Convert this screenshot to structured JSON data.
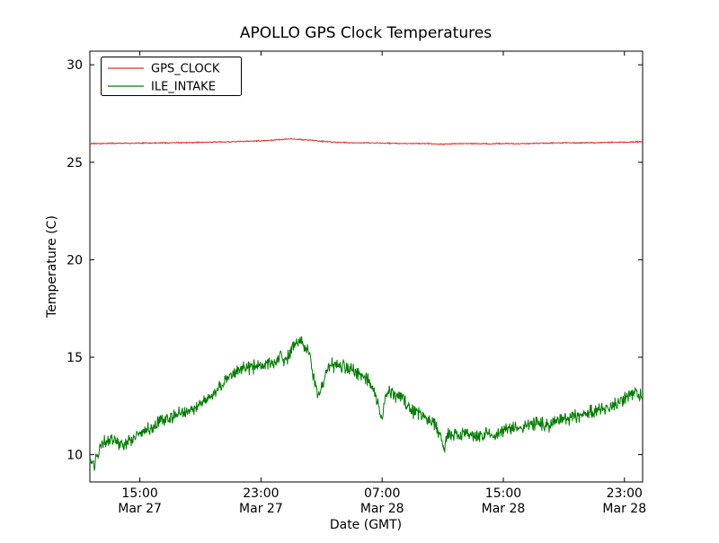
{
  "chart_data": {
    "type": "line",
    "title": "APOLLO GPS Clock Temperatures",
    "xlabel": "Date (GMT)",
    "ylabel": "Temperature (C)",
    "x_unit": "hours since Mar 27 00:00 GMT",
    "xlim": [
      11.7,
      48.2
    ],
    "ylim": [
      8.6,
      30.7
    ],
    "grid": false,
    "yticks": [
      10,
      15,
      20,
      25,
      30
    ],
    "xticks": [
      {
        "value": 15,
        "time": "15:00",
        "date": "Mar 27"
      },
      {
        "value": 23,
        "time": "23:00",
        "date": "Mar 27"
      },
      {
        "value": 31,
        "time": "07:00",
        "date": "Mar 28"
      },
      {
        "value": 39,
        "time": "15:00",
        "date": "Mar 28"
      },
      {
        "value": 47,
        "time": "23:00",
        "date": "Mar 28"
      }
    ],
    "legend": {
      "position": "upper-left"
    },
    "series": [
      {
        "name": "GPS_CLOCK",
        "color": "#e53228",
        "noise": 0.02,
        "points": [
          [
            11.7,
            25.95
          ],
          [
            13,
            25.97
          ],
          [
            15,
            25.98
          ],
          [
            17,
            26.0
          ],
          [
            19,
            26.02
          ],
          [
            21,
            26.05
          ],
          [
            23,
            26.1
          ],
          [
            24,
            26.15
          ],
          [
            25,
            26.2
          ],
          [
            26,
            26.15
          ],
          [
            27,
            26.08
          ],
          [
            28,
            26.02
          ],
          [
            29,
            26.0
          ],
          [
            30,
            26.0
          ],
          [
            31,
            25.98
          ],
          [
            32,
            25.97
          ],
          [
            33,
            25.96
          ],
          [
            34,
            25.96
          ],
          [
            35,
            25.93
          ],
          [
            36,
            25.95
          ],
          [
            37,
            25.96
          ],
          [
            38,
            25.95
          ],
          [
            39,
            25.96
          ],
          [
            40,
            25.95
          ],
          [
            41,
            25.97
          ],
          [
            42,
            25.98
          ],
          [
            43,
            26.0
          ],
          [
            44,
            26.0
          ],
          [
            45,
            26.0
          ],
          [
            46,
            26.02
          ],
          [
            47,
            26.03
          ],
          [
            48.2,
            26.05
          ]
        ]
      },
      {
        "name": "ILE_INTAKE",
        "color": "#007d00",
        "noise": 0.24,
        "points": [
          [
            11.7,
            9.8
          ],
          [
            11.9,
            9.4
          ],
          [
            12.1,
            9.7
          ],
          [
            12.4,
            10.5
          ],
          [
            12.7,
            10.7
          ],
          [
            13.2,
            10.7
          ],
          [
            13.6,
            10.6
          ],
          [
            14.0,
            10.6
          ],
          [
            14.4,
            10.8
          ],
          [
            14.8,
            11.0
          ],
          [
            15.3,
            11.2
          ],
          [
            15.8,
            11.4
          ],
          [
            16.3,
            11.7
          ],
          [
            16.8,
            11.9
          ],
          [
            17.3,
            12.0
          ],
          [
            17.8,
            12.2
          ],
          [
            18.3,
            12.3
          ],
          [
            18.8,
            12.5
          ],
          [
            19.3,
            12.8
          ],
          [
            19.8,
            13.1
          ],
          [
            20.3,
            13.5
          ],
          [
            20.8,
            14.0
          ],
          [
            21.3,
            14.3
          ],
          [
            21.8,
            14.4
          ],
          [
            22.3,
            14.5
          ],
          [
            22.8,
            14.5
          ],
          [
            23.3,
            14.6
          ],
          [
            23.7,
            14.8
          ],
          [
            24.0,
            14.6
          ],
          [
            24.3,
            15.1
          ],
          [
            24.6,
            14.7
          ],
          [
            25.0,
            15.4
          ],
          [
            25.3,
            15.7
          ],
          [
            25.6,
            15.8
          ],
          [
            25.9,
            15.5
          ],
          [
            26.2,
            15.2
          ],
          [
            26.5,
            13.9
          ],
          [
            26.8,
            13.0
          ],
          [
            27.1,
            13.6
          ],
          [
            27.4,
            14.4
          ],
          [
            27.7,
            14.6
          ],
          [
            28.1,
            14.5
          ],
          [
            28.5,
            14.5
          ],
          [
            29.0,
            14.4
          ],
          [
            29.5,
            14.1
          ],
          [
            30.0,
            13.9
          ],
          [
            30.4,
            13.3
          ],
          [
            30.7,
            12.7
          ],
          [
            30.95,
            11.9
          ],
          [
            31.2,
            13.0
          ],
          [
            31.5,
            13.3
          ],
          [
            31.8,
            13.1
          ],
          [
            32.1,
            12.9
          ],
          [
            32.4,
            12.9
          ],
          [
            32.7,
            12.5
          ],
          [
            33.1,
            12.2
          ],
          [
            33.5,
            12.1
          ],
          [
            33.9,
            11.9
          ],
          [
            34.3,
            11.7
          ],
          [
            34.6,
            11.3
          ],
          [
            34.9,
            10.9
          ],
          [
            35.1,
            10.4
          ],
          [
            35.3,
            11.0
          ],
          [
            35.7,
            11.0
          ],
          [
            36.1,
            11.0
          ],
          [
            36.5,
            11.1
          ],
          [
            37.0,
            10.9
          ],
          [
            37.5,
            11.0
          ],
          [
            38.0,
            11.1
          ],
          [
            38.5,
            11.0
          ],
          [
            39.0,
            11.2
          ],
          [
            39.5,
            11.3
          ],
          [
            40.0,
            11.4
          ],
          [
            40.5,
            11.5
          ],
          [
            41.0,
            11.5
          ],
          [
            41.5,
            11.6
          ],
          [
            42.0,
            11.5
          ],
          [
            42.5,
            11.7
          ],
          [
            43.0,
            11.8
          ],
          [
            43.5,
            11.9
          ],
          [
            44.0,
            12.0
          ],
          [
            44.5,
            12.1
          ],
          [
            45.0,
            12.2
          ],
          [
            45.5,
            12.3
          ],
          [
            46.0,
            12.5
          ],
          [
            46.5,
            12.6
          ],
          [
            47.0,
            12.9
          ],
          [
            47.4,
            13.1
          ],
          [
            47.8,
            13.2
          ],
          [
            48.0,
            13.0
          ],
          [
            48.2,
            13.1
          ]
        ]
      }
    ]
  }
}
